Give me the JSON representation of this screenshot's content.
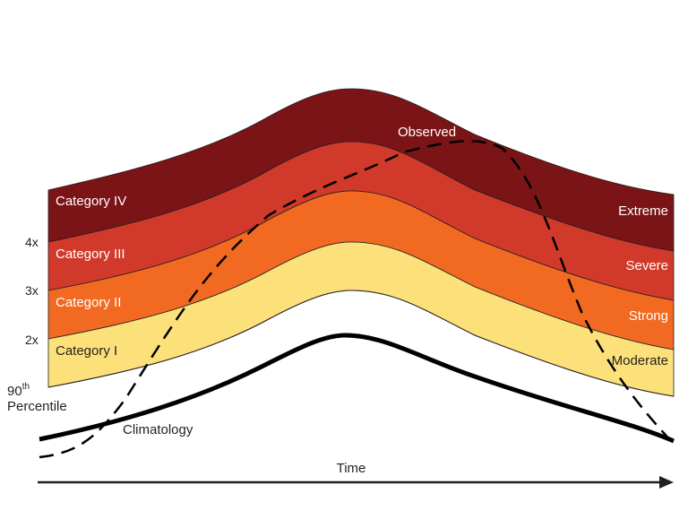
{
  "diagram": {
    "categories": [
      {
        "label": "Category I",
        "severity": "Moderate",
        "color": "#fce17a"
      },
      {
        "label": "Category II",
        "severity": "Strong",
        "color": "#f26a22"
      },
      {
        "label": "Category III",
        "severity": "Severe",
        "color": "#d13a2a"
      },
      {
        "label": "Category IV",
        "severity": "Extreme",
        "color": "#7b1416"
      }
    ],
    "multipliers": [
      "2x",
      "3x",
      "4x"
    ],
    "threshold": {
      "label_line1": "90",
      "superscript": "th",
      "label_line2": "Percentile"
    },
    "climatology_label": "Climatology",
    "observed_label": "Observed",
    "x_axis_label": "Time"
  }
}
